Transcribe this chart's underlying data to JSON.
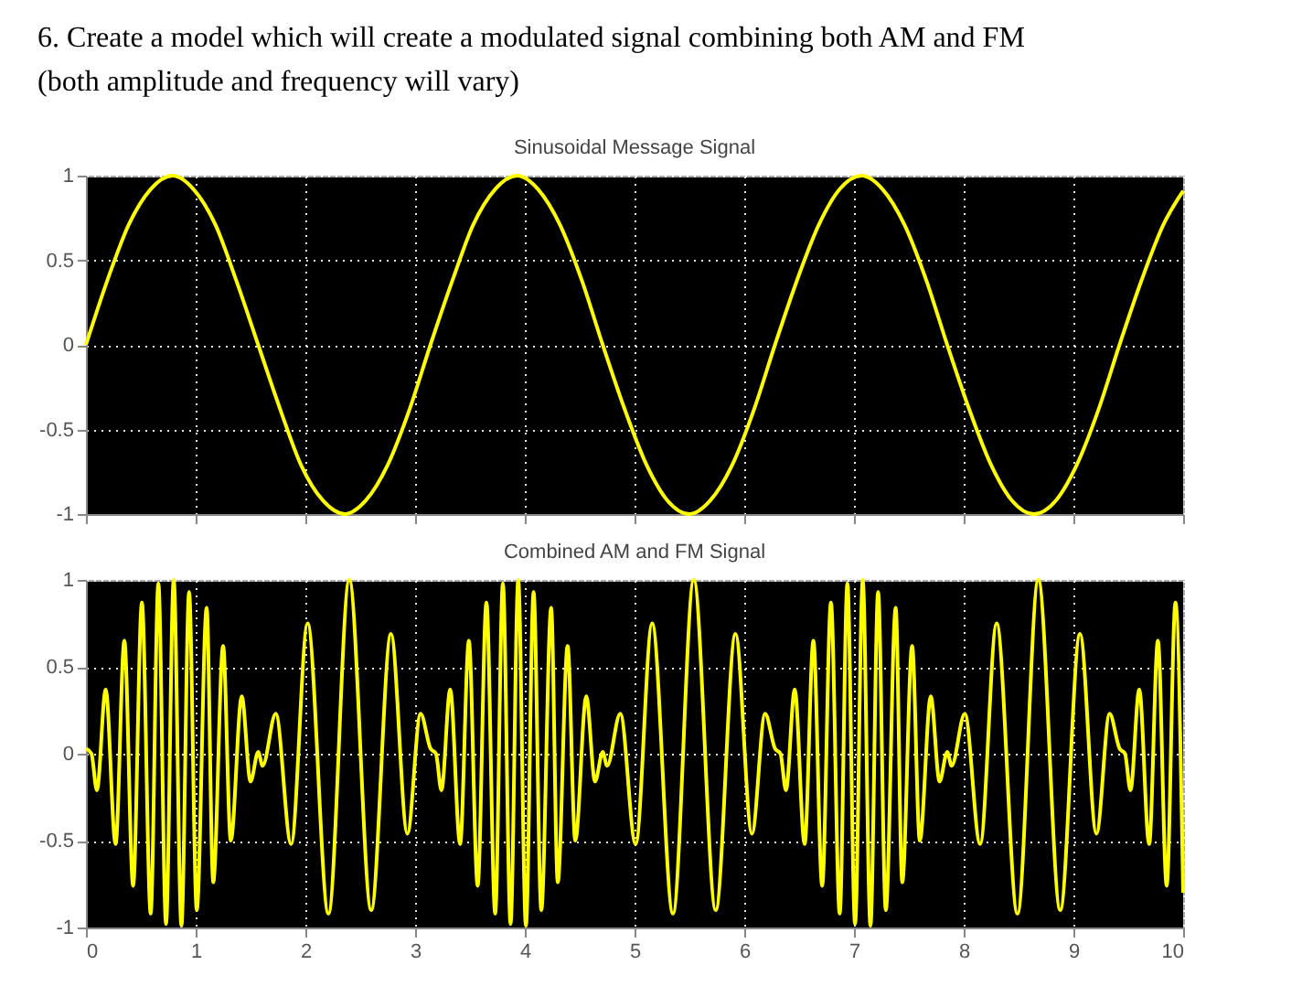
{
  "chart_data": [
    {
      "type": "line",
      "title": "Sinusoidal Message Signal",
      "annotations": [
        "6. Create a model which will create a modulated signal combining both AM and FM (both amplitude and frequency will vary)"
      ],
      "tick_labels": "y",
      "grid": true,
      "xlim": [
        0,
        10
      ],
      "xticks": [
        0,
        1,
        2,
        3,
        4,
        5,
        6,
        7,
        8,
        9,
        10
      ],
      "ylim": [
        -1,
        1
      ],
      "yticks": [
        -1,
        -0.5,
        0,
        0.5,
        1
      ],
      "series": [
        {
          "color": "#ffff00",
          "x": [
            0,
            0.2,
            0.39,
            0.59,
            0.79,
            0.98,
            1.18,
            1.37,
            1.57,
            1.77,
            1.96,
            2.16,
            2.36,
            2.55,
            2.75,
            2.95,
            3.14,
            3.34,
            3.53,
            3.73,
            3.93,
            4.12,
            4.32,
            4.52,
            4.71,
            4.91,
            5.11,
            5.3,
            5.5,
            5.69,
            5.89,
            6.09,
            6.28,
            6.48,
            6.68,
            6.87,
            7.07,
            7.26,
            7.46,
            7.66,
            7.85,
            8.05,
            8.25,
            8.44,
            8.64,
            8.84,
            9.03,
            9.23,
            9.42,
            9.62,
            9.82,
            10
          ],
          "values": [
            0,
            0.39,
            0.71,
            0.92,
            1,
            0.92,
            0.71,
            0.38,
            0,
            -0.38,
            -0.71,
            -0.92,
            -1,
            -0.92,
            -0.71,
            -0.38,
            0,
            0.38,
            0.71,
            0.92,
            1,
            0.92,
            0.71,
            0.38,
            0,
            -0.38,
            -0.71,
            -0.92,
            -1,
            -0.92,
            -0.71,
            -0.38,
            0,
            0.38,
            0.71,
            0.92,
            1,
            0.92,
            0.71,
            0.38,
            0,
            -0.38,
            -0.71,
            -0.92,
            -1,
            -0.92,
            -0.71,
            -0.38,
            0,
            0.38,
            0.71,
            0.91
          ]
        }
      ]
    },
    {
      "type": "line",
      "title": "Combined AM and FM Signal",
      "grid": true,
      "xlim": [
        0,
        10
      ],
      "xticks": [
        0,
        1,
        2,
        3,
        4,
        5,
        6,
        7,
        8,
        9,
        10
      ],
      "ylim": [
        -1,
        1
      ],
      "yticks": [
        -1,
        -0.5,
        0,
        0.5,
        1
      ],
      "series": [
        {
          "color": "#ffff00",
          "x": [
            0,
            0.05,
            0.1,
            0.18,
            0.27,
            0.35,
            0.43,
            0.51,
            0.59,
            0.66,
            0.73,
            0.8,
            0.87,
            0.94,
            1.01,
            1.1,
            1.16,
            1.25,
            1.32,
            1.42,
            1.5,
            1.57,
            1.61,
            1.73,
            1.87,
            2.02,
            2.21,
            2.4,
            2.6,
            2.78,
            2.93,
            3.05,
            3.14,
            3.19,
            3.24,
            3.32,
            3.41,
            3.49,
            3.57,
            3.65,
            3.73,
            3.8,
            3.87,
            3.94,
            4.01,
            4.08,
            4.15,
            4.24,
            4.3,
            4.39,
            4.46,
            4.56,
            4.64,
            4.71,
            4.75,
            4.87,
            5.01,
            5.16,
            5.35,
            5.54,
            5.74,
            5.92,
            6.07,
            6.19,
            6.28,
            6.33,
            6.38,
            6.46,
            6.55,
            6.63,
            6.71,
            6.79,
            6.87,
            6.94,
            7.01,
            7.08,
            7.15,
            7.22,
            7.29,
            7.38,
            7.44,
            7.53,
            7.6,
            7.7,
            7.78,
            7.85,
            7.89,
            8.01,
            8.15,
            8.3,
            8.49,
            8.68,
            8.88,
            9.06,
            9.21,
            9.33,
            9.42,
            9.47,
            9.52,
            9.6,
            9.69,
            9.77,
            9.85,
            9.93,
            10
          ],
          "values": [
            0.03,
            0,
            -0.21,
            0.37,
            -0.52,
            0.65,
            -0.76,
            0.87,
            -0.92,
            0.98,
            -0.98,
            1,
            -0.99,
            0.93,
            -0.9,
            0.84,
            -0.74,
            0.62,
            -0.5,
            0.33,
            -0.16,
            0.01,
            -0.07,
            0.23,
            -0.52,
            0.75,
            -0.92,
            1,
            -0.9,
            0.69,
            -0.46,
            0.23,
            0.03,
            0,
            -0.21,
            0.37,
            -0.52,
            0.65,
            -0.76,
            0.87,
            -0.92,
            0.98,
            -0.98,
            1,
            -0.99,
            0.93,
            -0.9,
            0.84,
            -0.74,
            0.62,
            -0.5,
            0.33,
            -0.16,
            0.01,
            -0.07,
            0.23,
            -0.52,
            0.75,
            -0.92,
            1,
            -0.9,
            0.69,
            -0.46,
            0.23,
            0.03,
            0,
            -0.21,
            0.37,
            -0.52,
            0.65,
            -0.76,
            0.87,
            -0.92,
            0.98,
            -0.98,
            1,
            -0.99,
            0.93,
            -0.9,
            0.84,
            -0.74,
            0.62,
            -0.5,
            0.33,
            -0.16,
            0.01,
            -0.07,
            0.23,
            -0.52,
            0.75,
            -0.92,
            1,
            -0.9,
            0.69,
            -0.46,
            0.23,
            0.03,
            0,
            -0.21,
            0.37,
            -0.52,
            0.65,
            -0.76,
            0.87,
            -0.8
          ]
        }
      ]
    }
  ]
}
